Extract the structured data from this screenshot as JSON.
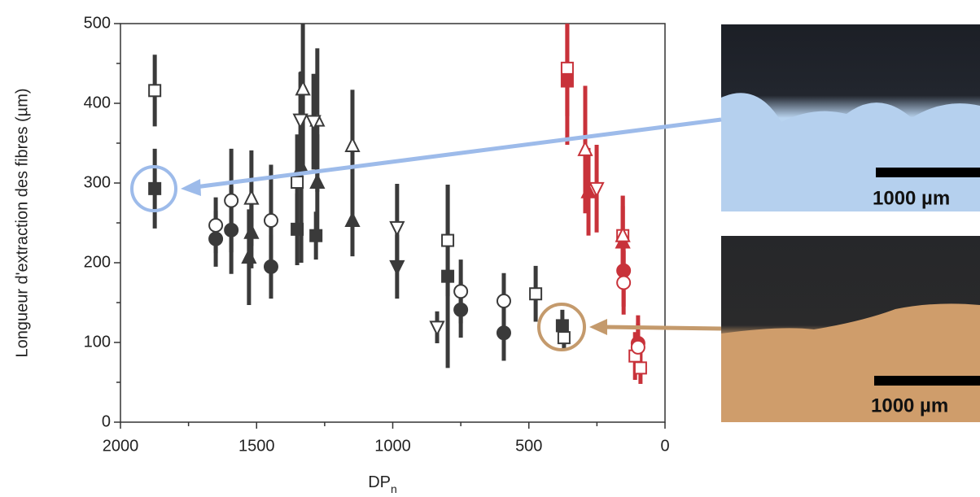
{
  "chart_data": {
    "type": "scatter",
    "ylabel": "Longueur d'extraction des fibres (µm)",
    "xlabel": "DP",
    "xlabel_sub": "n",
    "xlim": [
      2000,
      0
    ],
    "ylim": [
      0,
      500
    ],
    "xticks": [
      2000,
      1500,
      1000,
      500,
      0
    ],
    "yticks": [
      0,
      100,
      200,
      300,
      400,
      500
    ],
    "xticks_minor": [
      1750,
      1250,
      750,
      250
    ],
    "yticks_minor": [
      50,
      150,
      250,
      350,
      450
    ],
    "series": [
      {
        "color": "#3a3a3a",
        "marker": "square",
        "filled": true,
        "x": [
          1874,
          1351,
          1282,
          798,
          377
        ],
        "values": [
          293,
          242,
          234,
          183,
          121
        ],
        "errors": [
          50,
          45,
          30,
          115,
          20
        ]
      },
      {
        "color": "#3a3a3a",
        "marker": "square",
        "filled": false,
        "x": [
          1874,
          1351,
          798,
          475,
          371
        ],
        "values": [
          416,
          301,
          228,
          161,
          106
        ],
        "errors": [
          45,
          60,
          70,
          35,
          15
        ]
      },
      {
        "color": "#3a3a3a",
        "marker": "circle",
        "filled": true,
        "x": [
          1650,
          1593,
          1447,
          750,
          592
        ],
        "values": [
          230,
          241,
          195,
          141,
          112
        ],
        "errors": [
          35,
          55,
          40,
          35,
          35
        ]
      },
      {
        "color": "#3a3a3a",
        "marker": "circle",
        "filled": false,
        "x": [
          1650,
          1593,
          1447,
          750,
          592
        ],
        "values": [
          247,
          278,
          253,
          164,
          152
        ],
        "errors": [
          35,
          65,
          70,
          40,
          35
        ]
      },
      {
        "color": "#3a3a3a",
        "marker": "triangle-up",
        "filled": true,
        "x": [
          1519,
          1528,
          1277,
          1148,
          1336
        ],
        "values": [
          238,
          207,
          301,
          253,
          320
        ],
        "errors": [
          45,
          60,
          60,
          45,
          120
        ]
      },
      {
        "color": "#3a3a3a",
        "marker": "triangle-up",
        "filled": false,
        "x": [
          1519,
          1330,
          1277,
          1148
        ],
        "values": [
          281,
          418,
          379,
          347
        ],
        "errors": [
          60,
          100,
          90,
          70
        ]
      },
      {
        "color": "#3a3a3a",
        "marker": "triangle-down",
        "filled": true,
        "x": [
          984
        ],
        "values": [
          195
        ],
        "errors": [
          40
        ]
      },
      {
        "color": "#3a3a3a",
        "marker": "triangle-down",
        "filled": false,
        "x": [
          1339,
          1291,
          984,
          837
        ],
        "values": [
          379,
          377,
          244,
          119
        ],
        "errors": [
          60,
          60,
          55,
          20
        ]
      },
      {
        "color": "#c8323a",
        "marker": "square",
        "filled": true,
        "x": [
          359
        ],
        "values": [
          428
        ],
        "errors": [
          80
        ]
      },
      {
        "color": "#c8323a",
        "marker": "square",
        "filled": false,
        "x": [
          359,
          155,
          110,
          90
        ],
        "values": [
          444,
          234,
          83,
          68
        ],
        "errors": [
          60,
          50,
          30,
          20
        ]
      },
      {
        "color": "#c8323a",
        "marker": "circle",
        "filled": true,
        "x": [
          152,
          99
        ],
        "values": [
          190,
          99
        ],
        "errors": [
          45,
          35
        ]
      },
      {
        "color": "#c8323a",
        "marker": "circle",
        "filled": false,
        "x": [
          152,
          99
        ],
        "values": [
          175,
          94
        ],
        "errors": [
          40,
          30
        ]
      },
      {
        "color": "#c8323a",
        "marker": "triangle-up",
        "filled": true,
        "x": [
          281,
          155
        ],
        "values": [
          289,
          226
        ],
        "errors": [
          55,
          45
        ]
      },
      {
        "color": "#c8323a",
        "marker": "triangle-up",
        "filled": false,
        "x": [
          293,
          155
        ],
        "values": [
          342,
          234
        ],
        "errors": [
          80,
          50
        ]
      },
      {
        "color": "#c8323a",
        "marker": "triangle-down",
        "filled": false,
        "x": [
          251
        ],
        "values": [
          293
        ],
        "errors": [
          55
        ]
      }
    ],
    "annotations": [
      "1000 µm",
      "1000 µm"
    ]
  }
}
